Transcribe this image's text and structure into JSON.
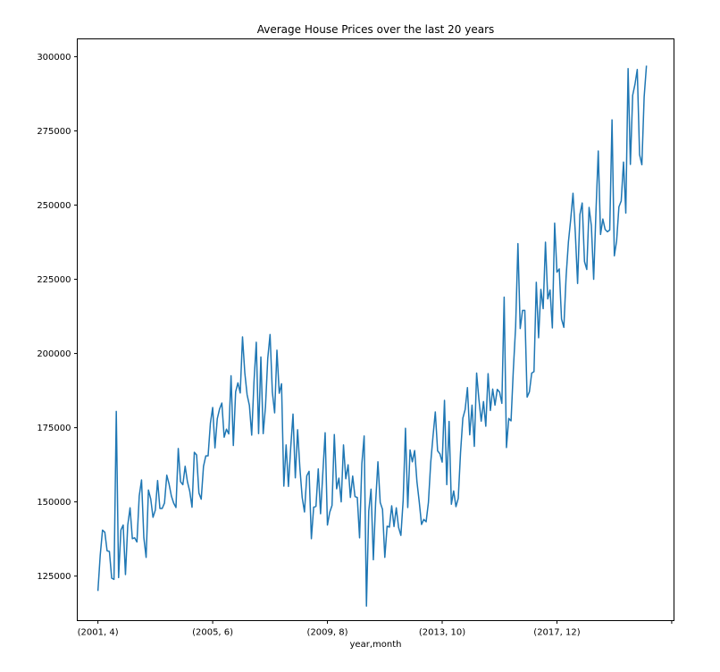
{
  "chart_data": {
    "type": "line",
    "title": "Average House Prices over the last 20 years",
    "xlabel": "year,month",
    "ylabel": "",
    "xtick_labels": [
      "(2001, 4)",
      "(2005, 6)",
      "(2009, 8)",
      "(2013, 10)",
      "(2017, 12)",
      ""
    ],
    "ytick_labels": [
      "125000",
      "150000",
      "175000",
      "200000",
      "225000",
      "250000",
      "275000",
      "300000"
    ],
    "yticks": [
      125000,
      150000,
      175000,
      200000,
      225000,
      250000,
      275000,
      300000
    ],
    "ylim": [
      110000,
      306000
    ],
    "xlim": [
      -9,
      251
    ],
    "grid": false,
    "legend": "none",
    "colors": {
      "line": "#1f77b4",
      "axes": "#000000"
    },
    "series": [
      {
        "start": "2001-04",
        "values": [
          120000,
          132000,
          140500,
          139800,
          133500,
          133300,
          124300,
          123900,
          180500,
          124500,
          140500,
          142200,
          125500,
          142200,
          148000,
          137600,
          137900,
          136500,
          152000,
          157400,
          138000,
          131300,
          154000,
          151000,
          144800,
          147200,
          157200,
          147800,
          147800,
          149600,
          159000,
          156000,
          152000,
          149600,
          148100,
          168000,
          156800,
          155800,
          162000,
          156800,
          153600,
          148200,
          166700,
          165800,
          153000,
          150900,
          162000,
          165500,
          165500,
          176500,
          181800,
          168200,
          178000,
          181300,
          183300,
          171800,
          174500,
          172900,
          192500,
          169000,
          187100,
          190100,
          186700,
          205600,
          193500,
          186100,
          182500,
          172500,
          190500,
          203800,
          173000,
          198800,
          173000,
          182000,
          198400,
          206400,
          187000,
          180000,
          201100,
          186600,
          189800,
          155300,
          169200,
          155200,
          168300,
          179600,
          158100,
          174300,
          161400,
          151500,
          146600,
          158800,
          160300,
          137600,
          148200,
          148500,
          161100,
          146000,
          159800,
          173300,
          142200,
          146500,
          148800,
          172700,
          154400,
          158000,
          150000,
          169200,
          157800,
          162500,
          151500,
          158700,
          151800,
          151500,
          137900,
          162900,
          172200,
          114900,
          146900,
          154300,
          130500,
          149800,
          163500,
          149800,
          147500,
          131300,
          141800,
          141500,
          148700,
          141700,
          148000,
          141400,
          138700,
          150600,
          174800,
          148100,
          167500,
          163500,
          167300,
          156800,
          150000,
          142400,
          144100,
          143300,
          149800,
          163200,
          172100,
          180300,
          167200,
          166200,
          163400,
          184200,
          155800,
          177100,
          149200,
          153700,
          148400,
          151200,
          166700,
          178200,
          181100,
          188500,
          172600,
          182600,
          168700,
          193400,
          184500,
          177200,
          183800,
          175500,
          193200,
          180800,
          188000,
          182600,
          187900,
          187000,
          183200,
          219000,
          168300,
          178100,
          177300,
          194500,
          209000,
          237000,
          208400,
          214500,
          214500,
          185300,
          187100,
          193400,
          193900,
          224000,
          205300,
          221600,
          215100,
          237500,
          218400,
          221400,
          208600,
          243900,
          227400,
          228500,
          211600,
          208800,
          226000,
          237600,
          245200,
          254000,
          240700,
          223600,
          246800,
          250700,
          231000,
          228300,
          249200,
          243000,
          225000,
          247800,
          268200,
          240100,
          245300,
          241800,
          241000,
          241600,
          278700,
          232900,
          237900,
          249400,
          251400,
          264500,
          247300,
          296000,
          263700,
          287000,
          290700,
          295700,
          267000,
          263600,
          286500,
          297000
        ]
      }
    ]
  }
}
